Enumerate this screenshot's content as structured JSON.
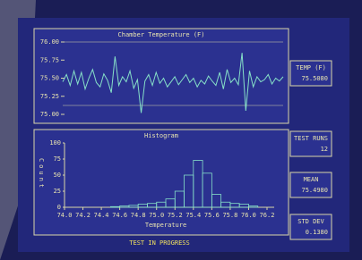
{
  "chart_data": [
    {
      "type": "line",
      "title": "Chamber Temperature (F)",
      "color": "#86e0c8",
      "values": [
        75.45,
        75.55,
        75.4,
        75.6,
        75.42,
        75.58,
        75.35,
        75.5,
        75.62,
        75.44,
        75.38,
        75.56,
        75.47,
        75.3,
        75.8,
        75.4,
        75.52,
        75.45,
        75.6,
        75.36,
        75.48,
        75.02,
        75.46,
        75.55,
        75.4,
        75.58,
        75.43,
        75.5,
        75.38,
        75.45,
        75.52,
        75.41,
        75.48,
        75.55,
        75.44,
        75.5,
        75.38,
        75.47,
        75.42,
        75.53,
        75.46,
        75.4,
        75.58,
        75.35,
        75.62,
        75.44,
        75.5,
        75.41,
        75.85,
        75.05,
        75.6,
        75.38,
        75.52,
        75.45,
        75.48,
        75.55,
        75.42,
        75.5,
        75.46,
        75.52
      ],
      "ylim": [
        75.0,
        76.0
      ],
      "yticks": [
        {
          "value": 75.0,
          "label": "75.00"
        },
        {
          "value": 75.25,
          "label": "75.25"
        },
        {
          "value": 75.5,
          "label": "75.50"
        },
        {
          "value": 75.75,
          "label": "75.75"
        },
        {
          "value": 76.0,
          "label": "76.00"
        }
      ]
    },
    {
      "type": "histogram",
      "title": "Histogram",
      "x_label": "Temperature",
      "y_label": "Count",
      "color": "#86e0c8",
      "bins": [
        74.0,
        74.1,
        74.2,
        74.3,
        74.4,
        74.5,
        74.6,
        74.7,
        74.8,
        74.9,
        75.0,
        75.1,
        75.2,
        75.3,
        75.4,
        75.5,
        75.6,
        75.7,
        75.8,
        75.9,
        76.0,
        76.1,
        76.2
      ],
      "values": [
        0,
        0,
        0,
        0,
        0,
        1,
        2,
        3,
        5,
        6,
        8,
        13,
        25,
        50,
        73,
        53,
        20,
        8,
        6,
        5,
        2,
        0
      ],
      "xlim": [
        74.0,
        76.2
      ],
      "xticks": [
        {
          "value": 74.0,
          "label": "74.0"
        },
        {
          "value": 74.2,
          "label": "74.2"
        },
        {
          "value": 74.4,
          "label": "74.4"
        },
        {
          "value": 74.6,
          "label": "74.6"
        },
        {
          "value": 74.8,
          "label": "74.8"
        },
        {
          "value": 75.0,
          "label": "75.0"
        },
        {
          "value": 75.2,
          "label": "75.2"
        },
        {
          "value": 75.4,
          "label": "75.4"
        },
        {
          "value": 75.6,
          "label": "75.6"
        },
        {
          "value": 75.8,
          "label": "75.8"
        },
        {
          "value": 76.0,
          "label": "76.0"
        },
        76.2
      ],
      "ylim": [
        0,
        100
      ],
      "yticks": [
        0,
        25,
        50,
        75,
        100
      ]
    }
  ],
  "panels": [
    {
      "label": "TEMP (F)",
      "value": "75.5080"
    },
    {
      "label": "TEST RUNS",
      "value": "12"
    },
    {
      "label": "MEAN",
      "value": "75.4980"
    },
    {
      "label": "STD DEV",
      "value": "0.1380"
    }
  ],
  "status": "TEST IN PROGRESS"
}
